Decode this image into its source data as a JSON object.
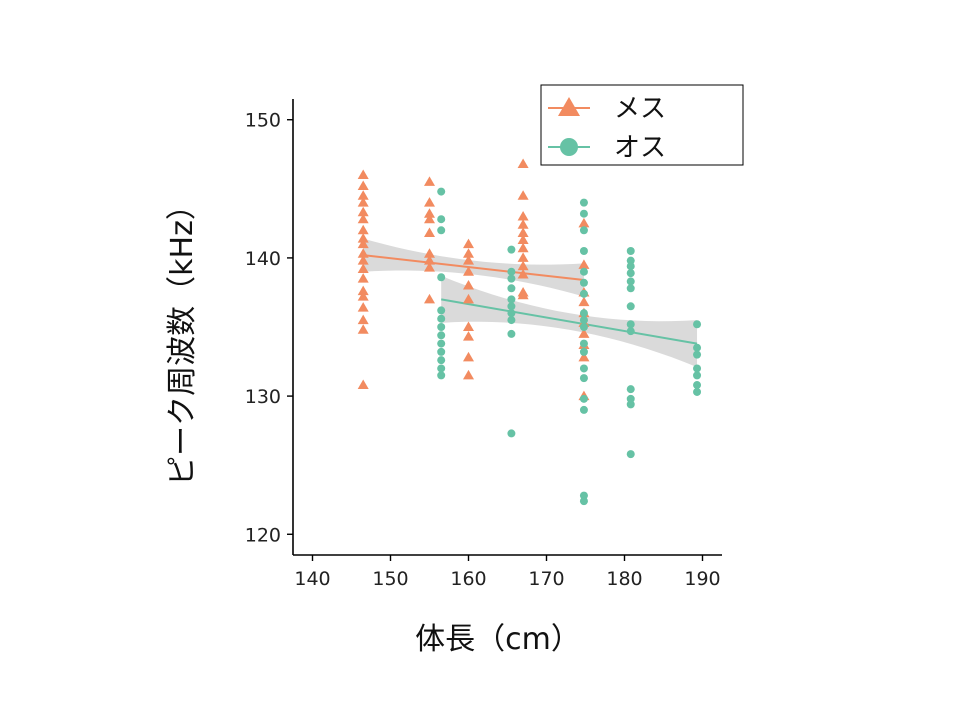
{
  "chart_data": {
    "type": "scatter",
    "title": "",
    "xlabel": "体長（cm）",
    "ylabel": "ピーク周波数（kHz）",
    "xlim": [
      137.5,
      192.5
    ],
    "ylim": [
      118.5,
      151.5
    ],
    "xticks": [
      140,
      150,
      160,
      170,
      180,
      190
    ],
    "yticks": [
      120,
      130,
      140,
      150
    ],
    "grid": false,
    "legend_position": "top-right",
    "series": [
      {
        "name": "メス",
        "marker": "triangle",
        "color": "#F28B60",
        "points": [
          [
            146.5,
            146.0
          ],
          [
            146.5,
            145.2
          ],
          [
            146.5,
            144.5
          ],
          [
            146.5,
            144.0
          ],
          [
            146.5,
            143.3
          ],
          [
            146.5,
            142.8
          ],
          [
            146.5,
            142.0
          ],
          [
            146.5,
            141.4
          ],
          [
            146.5,
            141.0
          ],
          [
            146.5,
            140.3
          ],
          [
            146.5,
            139.8
          ],
          [
            146.5,
            139.2
          ],
          [
            146.5,
            138.5
          ],
          [
            146.5,
            137.6
          ],
          [
            146.5,
            137.2
          ],
          [
            146.5,
            136.4
          ],
          [
            146.5,
            135.5
          ],
          [
            146.5,
            134.8
          ],
          [
            146.5,
            130.8
          ],
          [
            155.0,
            145.5
          ],
          [
            155.0,
            144.0
          ],
          [
            155.0,
            143.2
          ],
          [
            155.0,
            142.8
          ],
          [
            155.0,
            141.8
          ],
          [
            155.0,
            140.3
          ],
          [
            155.0,
            139.8
          ],
          [
            155.0,
            139.3
          ],
          [
            155.0,
            137.0
          ],
          [
            160.0,
            141.0
          ],
          [
            160.0,
            140.3
          ],
          [
            160.0,
            139.8
          ],
          [
            160.0,
            139.0
          ],
          [
            160.0,
            138.0
          ],
          [
            160.0,
            137.0
          ],
          [
            160.0,
            135.0
          ],
          [
            160.0,
            134.3
          ],
          [
            160.0,
            132.8
          ],
          [
            160.0,
            131.5
          ],
          [
            167.0,
            146.8
          ],
          [
            167.0,
            144.5
          ],
          [
            167.0,
            143.0
          ],
          [
            167.0,
            142.4
          ],
          [
            167.0,
            141.8
          ],
          [
            167.0,
            141.3
          ],
          [
            167.0,
            140.7
          ],
          [
            167.0,
            140.0
          ],
          [
            167.0,
            139.4
          ],
          [
            167.0,
            138.8
          ],
          [
            167.0,
            137.5
          ],
          [
            167.0,
            137.3
          ],
          [
            174.8,
            142.5
          ],
          [
            174.8,
            139.5
          ],
          [
            174.8,
            137.5
          ],
          [
            174.8,
            136.8
          ],
          [
            174.8,
            136.0
          ],
          [
            174.8,
            135.3
          ],
          [
            174.8,
            134.5
          ],
          [
            174.8,
            133.7
          ],
          [
            174.8,
            132.8
          ],
          [
            174.8,
            130.0
          ]
        ],
        "fit": {
          "x": [
            146.5,
            174.8
          ],
          "y": [
            140.2,
            138.4
          ]
        }
      },
      {
        "name": "オス",
        "marker": "circle",
        "color": "#66C2A5",
        "points": [
          [
            156.5,
            144.8
          ],
          [
            156.5,
            142.8
          ],
          [
            156.5,
            142.0
          ],
          [
            156.5,
            138.6
          ],
          [
            156.5,
            136.2
          ],
          [
            156.5,
            135.6
          ],
          [
            156.5,
            135.0
          ],
          [
            156.5,
            134.4
          ],
          [
            156.5,
            133.8
          ],
          [
            156.5,
            133.2
          ],
          [
            156.5,
            132.6
          ],
          [
            156.5,
            132.0
          ],
          [
            156.5,
            131.5
          ],
          [
            165.5,
            140.6
          ],
          [
            165.5,
            139.0
          ],
          [
            165.5,
            138.5
          ],
          [
            165.5,
            137.8
          ],
          [
            165.5,
            137.0
          ],
          [
            165.5,
            136.5
          ],
          [
            165.5,
            136.0
          ],
          [
            165.5,
            135.5
          ],
          [
            165.5,
            134.5
          ],
          [
            165.5,
            127.3
          ],
          [
            174.8,
            144.0
          ],
          [
            174.8,
            143.2
          ],
          [
            174.8,
            142.0
          ],
          [
            174.8,
            140.5
          ],
          [
            174.8,
            139.0
          ],
          [
            174.8,
            138.2
          ],
          [
            174.8,
            137.4
          ],
          [
            174.8,
            136.0
          ],
          [
            174.8,
            135.5
          ],
          [
            174.8,
            135.0
          ],
          [
            174.8,
            133.8
          ],
          [
            174.8,
            133.2
          ],
          [
            174.8,
            132.0
          ],
          [
            174.8,
            131.3
          ],
          [
            174.8,
            129.8
          ],
          [
            174.8,
            129.0
          ],
          [
            174.8,
            122.8
          ],
          [
            174.8,
            122.4
          ],
          [
            180.8,
            140.5
          ],
          [
            180.8,
            139.8
          ],
          [
            180.8,
            139.4
          ],
          [
            180.8,
            138.9
          ],
          [
            180.8,
            138.3
          ],
          [
            180.8,
            137.8
          ],
          [
            180.8,
            136.5
          ],
          [
            180.8,
            135.2
          ],
          [
            180.8,
            134.7
          ],
          [
            180.8,
            130.5
          ],
          [
            180.8,
            129.8
          ],
          [
            180.8,
            129.4
          ],
          [
            180.8,
            125.8
          ],
          [
            189.3,
            135.2
          ],
          [
            189.3,
            133.5
          ],
          [
            189.3,
            133.0
          ],
          [
            189.3,
            132.0
          ],
          [
            189.3,
            131.5
          ],
          [
            189.3,
            130.8
          ],
          [
            189.3,
            130.3
          ]
        ],
        "fit": {
          "x": [
            156.5,
            189.3
          ],
          "y": [
            137.0,
            133.8
          ]
        }
      }
    ],
    "confidence_band_color": "#D3D3D3"
  }
}
